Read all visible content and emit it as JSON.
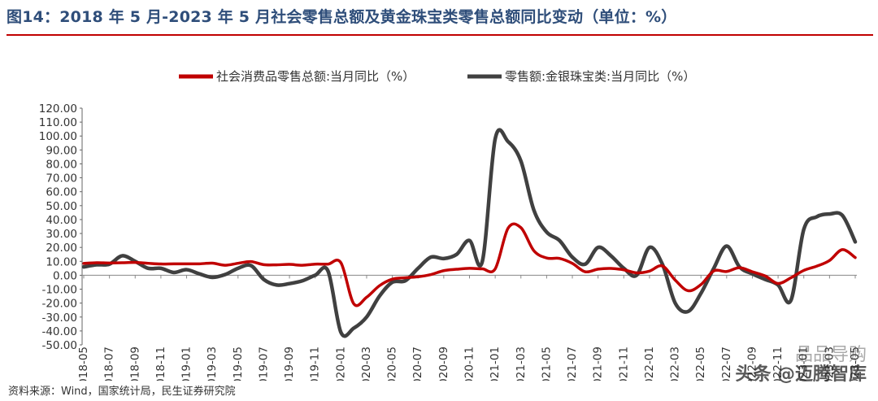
{
  "header": {
    "title": "图14：2018 年 5 月-2023 年 5 月社会零售总额及黄金珠宝类零售总额同比变动（单位：%）"
  },
  "footer": {
    "source": "资料来源：Wind，国家统计局，民生证券研究院",
    "watermark": "头条 @迈腾智库",
    "watermark_brand": "品品导购"
  },
  "colors": {
    "title": "#2f4e7a",
    "rule": "#c00000",
    "series_retail": "#c00000",
    "series_gold": "#404040"
  },
  "chart_data": {
    "type": "line",
    "title": "",
    "xlabel": "",
    "ylabel": "",
    "ylim": [
      -50,
      120
    ],
    "yticks": [
      "120.00",
      "110.00",
      "100.00",
      "90.00",
      "80.00",
      "70.00",
      "60.00",
      "50.00",
      "40.00",
      "30.00",
      "20.00",
      "10.00",
      "0.00",
      "-10.00",
      "-20.00",
      "-30.00",
      "-40.00",
      "-50.00"
    ],
    "xticks": [
      "2018-05",
      "2018-07",
      "2018-09",
      "2018-11",
      "2019-01",
      "2019-03",
      "2019-05",
      "2019-07",
      "2019-09",
      "2019-11",
      "2020-01",
      "2020-03",
      "2020-05",
      "2020-07",
      "2020-09",
      "2020-11",
      "2021-01",
      "2021-03",
      "2021-05",
      "2021-07",
      "2021-09",
      "2021-11",
      "2022-01",
      "2022-03",
      "2022-05",
      "2022-07",
      "2022-09",
      "2022-11",
      "2023-01",
      "2023-03",
      "2023-05"
    ],
    "legend_position": "top",
    "grid": false,
    "series": [
      {
        "name": "社会消费品零售总额:当月同比（%）",
        "color": "#c00000",
        "x": [
          "2018-05",
          "2018-06",
          "2018-07",
          "2018-08",
          "2018-09",
          "2018-10",
          "2018-11",
          "2018-12",
          "2019-01",
          "2019-02",
          "2019-03",
          "2019-04",
          "2019-05",
          "2019-06",
          "2019-07",
          "2019-08",
          "2019-09",
          "2019-10",
          "2019-11",
          "2019-12",
          "2020-01",
          "2020-02",
          "2020-03",
          "2020-04",
          "2020-05",
          "2020-06",
          "2020-07",
          "2020-08",
          "2020-09",
          "2020-10",
          "2020-11",
          "2020-12",
          "2021-01",
          "2021-02",
          "2021-03",
          "2021-04",
          "2021-05",
          "2021-06",
          "2021-07",
          "2021-08",
          "2021-09",
          "2021-10",
          "2021-11",
          "2021-12",
          "2022-01",
          "2022-02",
          "2022-03",
          "2022-04",
          "2022-05",
          "2022-06",
          "2022-07",
          "2022-08",
          "2022-09",
          "2022-10",
          "2022-11",
          "2022-12",
          "2023-01",
          "2023-02",
          "2023-03",
          "2023-04",
          "2023-05"
        ],
        "values": [
          8.5,
          9.0,
          8.8,
          9.0,
          9.2,
          8.6,
          8.1,
          8.2,
          8.2,
          8.2,
          8.7,
          7.2,
          8.6,
          9.8,
          7.6,
          7.5,
          7.8,
          7.2,
          8.0,
          8.0,
          9.0,
          -20.5,
          -15.8,
          -7.5,
          -2.8,
          -1.8,
          -1.1,
          0.5,
          3.3,
          4.3,
          5.0,
          4.6,
          4.6,
          33.8,
          34.2,
          17.7,
          12.4,
          12.1,
          8.5,
          2.5,
          4.4,
          4.9,
          3.9,
          1.7,
          3.0,
          6.7,
          -3.5,
          -11.1,
          -6.7,
          3.1,
          2.7,
          5.4,
          2.5,
          -0.5,
          -5.9,
          -1.8,
          3.5,
          6.5,
          10.6,
          18.4,
          12.7
        ]
      },
      {
        "name": "零售额:金银珠宝类:当月同比（%）",
        "color": "#404040",
        "x": [
          "2018-05",
          "2018-06",
          "2018-07",
          "2018-08",
          "2018-09",
          "2018-10",
          "2018-11",
          "2018-12",
          "2019-01",
          "2019-02",
          "2019-03",
          "2019-04",
          "2019-05",
          "2019-06",
          "2019-07",
          "2019-08",
          "2019-09",
          "2019-10",
          "2019-11",
          "2019-12",
          "2020-01",
          "2020-02",
          "2020-03",
          "2020-04",
          "2020-05",
          "2020-06",
          "2020-07",
          "2020-08",
          "2020-09",
          "2020-10",
          "2020-11",
          "2020-12",
          "2021-01",
          "2021-02",
          "2021-03",
          "2021-04",
          "2021-05",
          "2021-06",
          "2021-07",
          "2021-08",
          "2021-09",
          "2021-10",
          "2021-11",
          "2021-12",
          "2022-01",
          "2022-02",
          "2022-03",
          "2022-04",
          "2022-05",
          "2022-06",
          "2022-07",
          "2022-08",
          "2022-09",
          "2022-10",
          "2022-11",
          "2022-12",
          "2023-01",
          "2023-02",
          "2023-03",
          "2023-04",
          "2023-05"
        ],
        "values": [
          6.0,
          7.5,
          8.0,
          14.0,
          10.0,
          5.0,
          5.0,
          2.0,
          4.0,
          1.0,
          -1.5,
          0.5,
          5.0,
          7.0,
          -3.0,
          -7.0,
          -6.0,
          -4.0,
          0.0,
          3.0,
          -41.0,
          -38.0,
          -30.0,
          -15.0,
          -5.0,
          -4.0,
          5.0,
          13.0,
          12.0,
          15.0,
          25.0,
          10.0,
          98.0,
          96.0,
          82.0,
          47.0,
          31.0,
          25.0,
          13.0,
          8.0,
          20.0,
          14.0,
          5.0,
          0.0,
          20.0,
          8.0,
          -20.0,
          -26.0,
          -13.0,
          5.0,
          21.0,
          6.0,
          1.0,
          -3.0,
          -7.0,
          -18.0,
          33.0,
          42.0,
          44.0,
          43.0,
          24.0
        ]
      }
    ]
  }
}
